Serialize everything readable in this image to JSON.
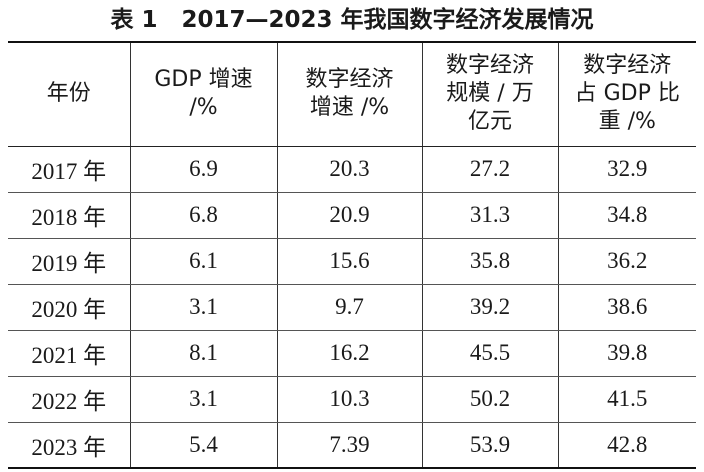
{
  "caption": "表 1   2017—2023 年我国数字经济发展情况",
  "table": {
    "headers": [
      [
        "年份"
      ],
      [
        "GDP 增速",
        "/%"
      ],
      [
        "数字经济",
        "增速 /%"
      ],
      [
        "数字经济",
        "规模 / 万",
        "亿元"
      ],
      [
        "数字经济",
        "占 GDP 比",
        "重 /%"
      ]
    ],
    "rows": [
      [
        "2017 年",
        "6.9",
        "20.3",
        "27.2",
        "32.9"
      ],
      [
        "2018 年",
        "6.8",
        "20.9",
        "31.3",
        "34.8"
      ],
      [
        "2019 年",
        "6.1",
        "15.6",
        "35.8",
        "36.2"
      ],
      [
        "2020 年",
        "3.1",
        "9.7",
        "39.2",
        "38.6"
      ],
      [
        "2021 年",
        "8.1",
        "16.2",
        "45.5",
        "39.8"
      ],
      [
        "2022 年",
        "3.1",
        "10.3",
        "50.2",
        "41.5"
      ],
      [
        "2023 年",
        "5.4",
        "7.39",
        "53.9",
        "42.8"
      ]
    ]
  }
}
